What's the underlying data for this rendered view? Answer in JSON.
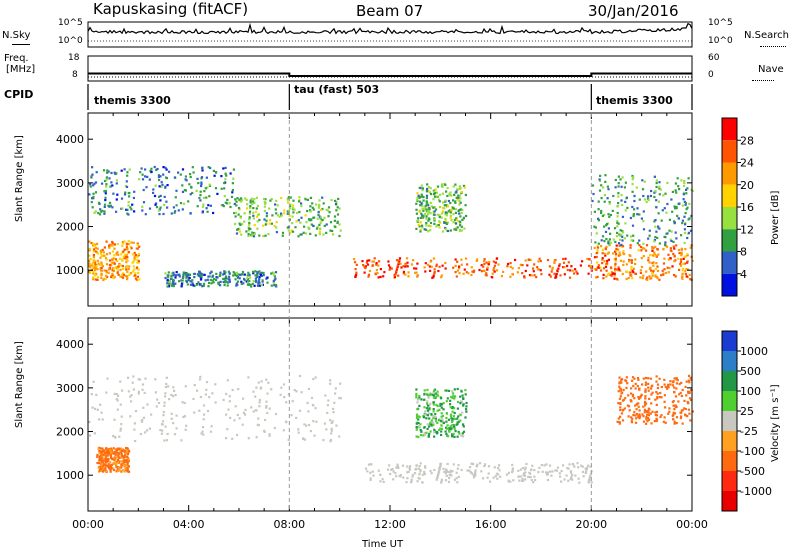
{
  "header": {
    "station": "Kapuskasing (fitACF)",
    "beam": "Beam 07",
    "date": "30/Jan/2016"
  },
  "noise_panel": {
    "left_label": "N.Sky",
    "left_ticks": [
      "10^5",
      "10^0"
    ],
    "right_label": "N.Search",
    "right_ticks": [
      "10^5",
      "10^0"
    ]
  },
  "freq_panel": {
    "left_label_1": "Freq.",
    "left_label_2": "[MHz]",
    "left_ticks": [
      "18",
      "8"
    ],
    "right_label": "Nave",
    "right_ticks": [
      "60",
      "0"
    ]
  },
  "cpid_panel": {
    "label": "CPID",
    "segments": [
      {
        "start_hour": 0,
        "end_hour": 8,
        "name": "themis 3300"
      },
      {
        "start_hour": 8,
        "end_hour": 20,
        "name": "tau (fast) 503"
      },
      {
        "start_hour": 20,
        "end_hour": 24,
        "name": "themis 3300"
      }
    ]
  },
  "power_panel": {
    "ylabel": "Slant Range [km]",
    "colorbar_label": "Power [dB]",
    "colorbar_ticks": [
      "28",
      "24",
      "20",
      "16",
      "12",
      "8",
      "4"
    ],
    "colors": [
      "#ff0000",
      "#ff5500",
      "#ff9900",
      "#ffd200",
      "#98e040",
      "#30a040",
      "#3060c8",
      "#0010e0"
    ]
  },
  "velocity_panel": {
    "ylabel": "Slant Range [km]",
    "colorbar_label": "Velocity [m s⁻¹]",
    "colorbar_ticks": [
      "1000",
      "500",
      "100",
      "25",
      "-25",
      "-100",
      "-500",
      "-1000"
    ],
    "colors": [
      "#1a3cd0",
      "#2c7ec8",
      "#209848",
      "#50d030",
      "#c8c8c0",
      "#ffa020",
      "#ff6a10",
      "#ff2a10",
      "#e80000"
    ],
    "ground_scatter_color": "#c8c8c0"
  },
  "axes": {
    "x_label": "Time UT",
    "x_ticks": [
      "00:00",
      "04:00",
      "08:00",
      "12:00",
      "16:00",
      "20:00",
      "00:00"
    ],
    "y_ticks": [
      "1000",
      "2000",
      "3000",
      "4000"
    ]
  },
  "chart_data": {
    "type": "heatmap",
    "title": "Kapuskasing (fitACF) Beam 07 30/Jan/2016",
    "xlabel": "Time UT",
    "ylabel": "Slant Range [km]",
    "xlim": [
      0,
      24
    ],
    "ylim": [
      180,
      4600
    ],
    "x_ticks": [
      "00:00",
      "04:00",
      "08:00",
      "12:00",
      "16:00",
      "20:00",
      "00:00"
    ],
    "y_ticks": [
      1000,
      2000,
      3000,
      4000
    ],
    "mode_change_hours": [
      8,
      20
    ],
    "frequency_mhz": [
      {
        "start_hour": 0,
        "end_hour": 8,
        "value": 11
      },
      {
        "start_hour": 8,
        "end_hour": 20,
        "value": 10
      },
      {
        "start_hour": 20,
        "end_hour": 24,
        "value": 11
      }
    ],
    "power_regions_db": [
      {
        "t0": 0.0,
        "t1": 2.0,
        "r0": 800,
        "r1": 1700,
        "power": 20
      },
      {
        "t0": 0.0,
        "t1": 5.8,
        "r0": 2300,
        "r1": 3400,
        "power": 6
      },
      {
        "t0": 5.8,
        "t1": 10.0,
        "r0": 1800,
        "r1": 2700,
        "power": 10
      },
      {
        "t0": 3.0,
        "t1": 7.5,
        "r0": 650,
        "r1": 1000,
        "power": 6
      },
      {
        "t0": 10.5,
        "t1": 20.0,
        "r0": 850,
        "r1": 1300,
        "power": 24
      },
      {
        "t0": 13.0,
        "t1": 15.0,
        "r0": 1900,
        "r1": 3000,
        "power": 10
      },
      {
        "t0": 20.0,
        "t1": 24.0,
        "r0": 800,
        "r1": 1600,
        "power": 22
      },
      {
        "t0": 20.0,
        "t1": 24.0,
        "r0": 1600,
        "r1": 3200,
        "power": 8
      }
    ],
    "velocity_regions_ms": [
      {
        "t0": 0.3,
        "t1": 1.6,
        "r0": 1100,
        "r1": 1650,
        "velocity": -150
      },
      {
        "t0": 0.0,
        "t1": 10.0,
        "r0": 1800,
        "r1": 3300,
        "velocity": 0,
        "ground_scatter": true
      },
      {
        "t0": 11.0,
        "t1": 20.0,
        "r0": 850,
        "r1": 1300,
        "velocity": 0,
        "ground_scatter": true
      },
      {
        "t0": 13.0,
        "t1": 15.0,
        "r0": 1900,
        "r1": 3000,
        "velocity": 100
      },
      {
        "t0": 21.0,
        "t1": 24.0,
        "r0": 2200,
        "r1": 3300,
        "velocity": -300
      }
    ]
  }
}
